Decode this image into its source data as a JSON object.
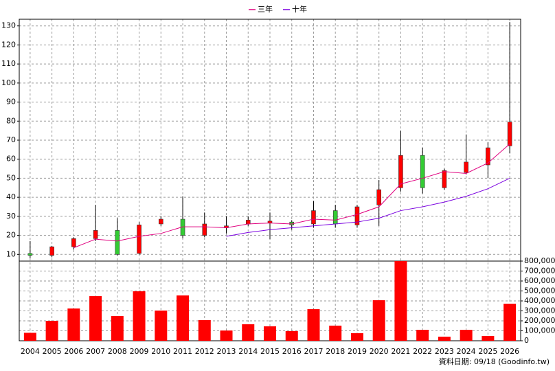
{
  "chart_data": {
    "type": "candlestick",
    "categories": [
      "2004",
      "2005",
      "2006",
      "2007",
      "2008",
      "2009",
      "2010",
      "2011",
      "2012",
      "2013",
      "2014",
      "2015",
      "2016",
      "2017",
      "2018",
      "2019",
      "2020",
      "2021",
      "2022",
      "2023",
      "2024",
      "2025",
      "2026"
    ],
    "open": [
      10.5,
      9.5,
      14,
      18.3,
      22.6,
      10.5,
      26,
      28.5,
      20,
      24,
      26,
      26.5,
      27,
      26,
      33,
      25.5,
      36,
      45,
      62,
      45,
      53,
      57,
      67
    ],
    "high": [
      17,
      14.5,
      19,
      36,
      29,
      27,
      30,
      40.5,
      32,
      30,
      30,
      32,
      28,
      38,
      36,
      36,
      49,
      75,
      66,
      55,
      73,
      69,
      132
    ],
    "low": [
      8,
      8.5,
      12.5,
      17,
      9.5,
      10,
      25,
      18.5,
      19,
      21,
      25,
      18,
      23,
      24,
      24,
      24,
      25,
      43,
      42,
      44,
      52,
      50,
      63
    ],
    "close": [
      9.5,
      14,
      18.3,
      22.6,
      10,
      25.5,
      28.5,
      20,
      26,
      25,
      28,
      27.5,
      25.5,
      33,
      26,
      35,
      44,
      62,
      45,
      54,
      58.5,
      66,
      79.5
    ],
    "up_color": "#ff0000",
    "down_color": "#33cc33",
    "series": [
      {
        "name": "三年",
        "color": "#e0007f",
        "values": [
          null,
          null,
          13.5,
          18,
          17,
          19.5,
          21,
          24.5,
          24.5,
          24,
          26,
          26.5,
          26,
          28.5,
          28,
          31,
          35,
          47,
          50,
          53.5,
          52.5,
          58,
          68
        ]
      },
      {
        "name": "十年",
        "color": "#7a00e0",
        "values": [
          null,
          null,
          null,
          null,
          null,
          null,
          null,
          null,
          null,
          19.5,
          21.5,
          23,
          24,
          25,
          26,
          27,
          29,
          33,
          35,
          37.5,
          40.5,
          44.5,
          50
        ]
      }
    ],
    "ylim": [
      6.5,
      133.5
    ],
    "yticks": [
      10,
      20,
      30,
      40,
      50,
      60,
      70,
      80,
      90,
      100,
      110,
      120,
      130
    ],
    "volume": {
      "color": "#ff0000",
      "values": [
        80000,
        200000,
        324000,
        448000,
        248000,
        497000,
        303000,
        455000,
        207000,
        103000,
        166000,
        145000,
        97000,
        317000,
        152000,
        76000,
        407000,
        800000,
        110000,
        41000,
        110000,
        48000,
        372000
      ],
      "y2lim": [
        0,
        800000
      ],
      "y2ticks": [
        0,
        {
          "value": 100000,
          "label": "100,000"
        },
        {
          "value": 200000,
          "label": "200,000"
        },
        {
          "value": 300000,
          "label": "300,000"
        },
        {
          "value": 400000,
          "label": "400,000"
        },
        {
          "value": 500000,
          "label": "500,000"
        },
        {
          "value": 600000,
          "label": "600,000"
        },
        {
          "value": 700000,
          "label": "700,000"
        },
        {
          "value": 800000,
          "label": "800,000"
        }
      ]
    },
    "grid": true,
    "source": "資料日期: 09/18 (Goodinfo.tw)"
  }
}
